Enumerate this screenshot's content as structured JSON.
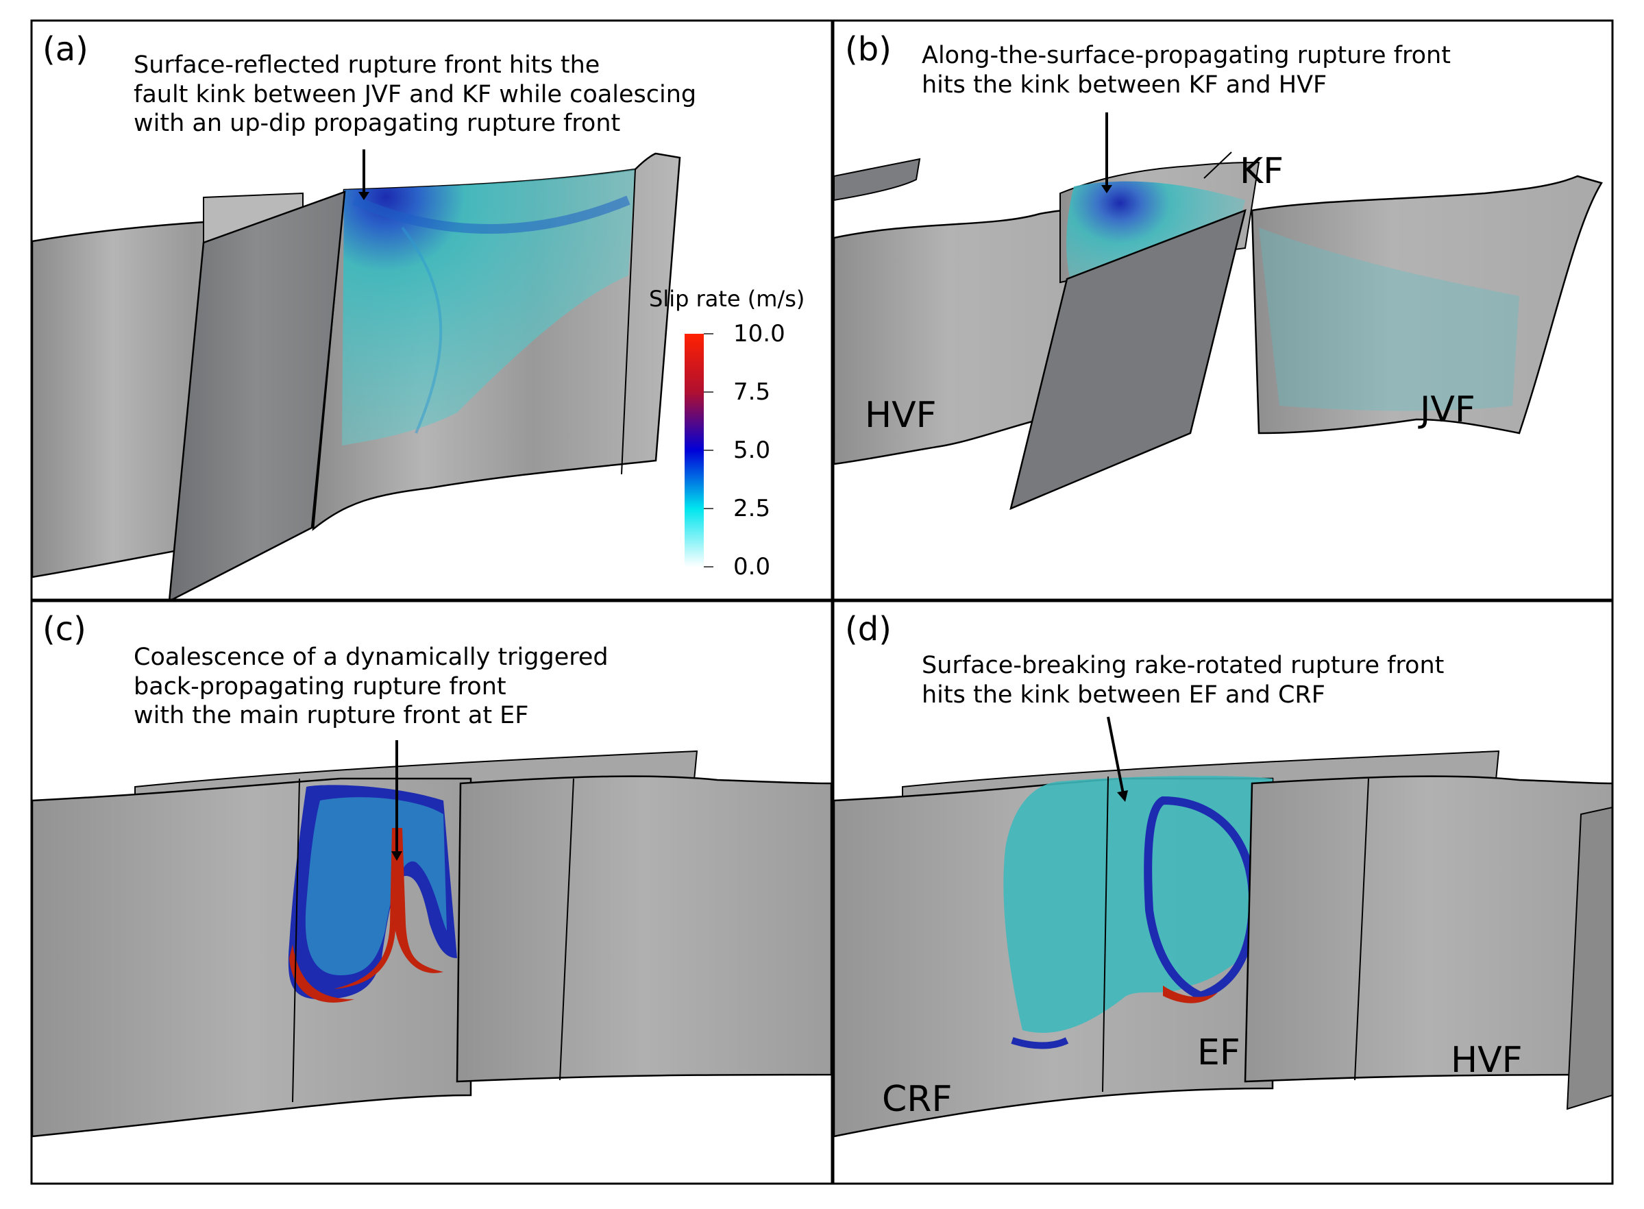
{
  "panels": [
    {
      "letter": "(a)",
      "annotation": [
        "Surface-reflected rupture front hits the",
        "fault kink between JVF and KF while coalescing",
        "with an up-dip propagating rupture front"
      ],
      "labels": []
    },
    {
      "letter": "(b)",
      "annotation": [
        "Along-the-surface-propagating rupture front",
        "hits the kink between KF and HVF"
      ],
      "labels": [
        "KF",
        "HVF",
        "JVF"
      ]
    },
    {
      "letter": "(c)",
      "annotation": [
        "Coalescence of a dynamically triggered",
        "back-propagating rupture front",
        "with the main rupture front at EF"
      ],
      "labels": []
    },
    {
      "letter": "(d)",
      "annotation": [
        "Surface-breaking rake-rotated rupture front",
        "hits the kink between EF and CRF"
      ],
      "labels": [
        "EF",
        "HVF",
        "CRF"
      ]
    }
  ],
  "colorbar": {
    "title": "Slip rate (m/s)",
    "ticks": [
      "10.0",
      "7.5",
      "5.0",
      "2.5",
      "0.0"
    ],
    "range": [
      0.0,
      10.0
    ],
    "colors": [
      "#ffffff",
      "#00e5ee",
      "#0000d8",
      "#b01030",
      "#ff2000"
    ]
  },
  "colors": {
    "fault_surface": "#a8a8a8",
    "fault_dark": "#6e7073",
    "slip_cyan": "#3fb9bd",
    "slip_blue": "#1c2bb0",
    "slip_red": "#c0240c"
  }
}
